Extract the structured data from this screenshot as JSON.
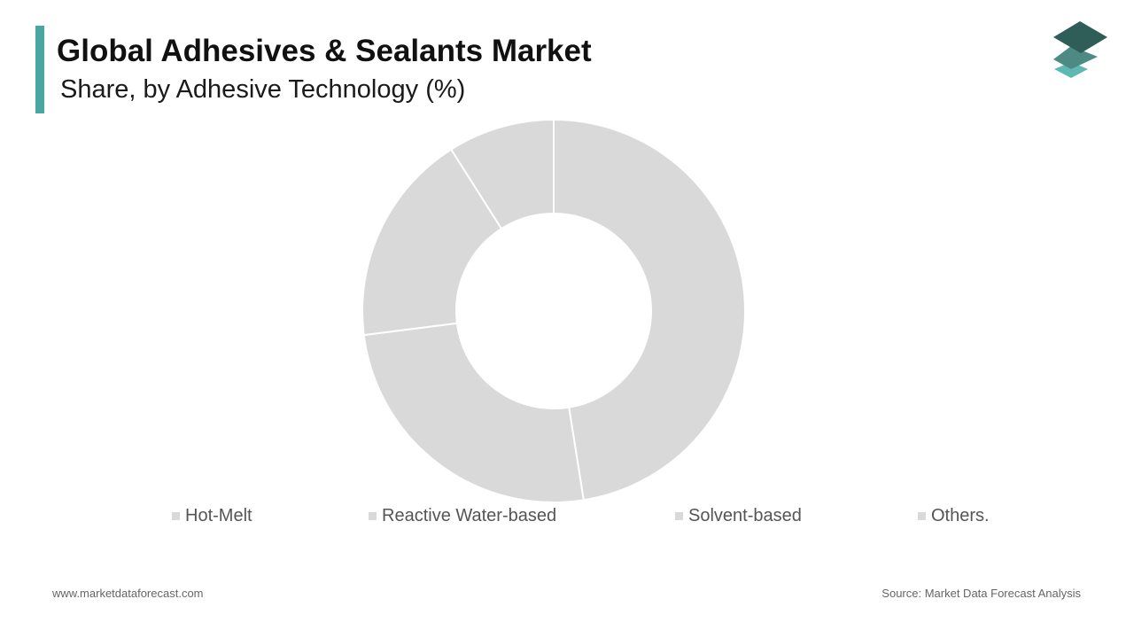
{
  "header": {
    "title": "Global Adhesives & Sealants Market",
    "subtitle": "Share, by Adhesive Technology (%)"
  },
  "colors": {
    "accent": "#4aa6a3",
    "slice": "#d9d9d9",
    "slice_border": "#ffffff",
    "logo_dark": "#2f5d58",
    "logo_mid": "#4d8a84",
    "logo_light": "#5fb8b2"
  },
  "logo": {
    "icon": "stacked-layers-icon"
  },
  "chart_data": {
    "type": "pie",
    "variant": "donut",
    "categories": [
      "Hot-Melt",
      "Reactive Water-based",
      "Solvent-based",
      "Others."
    ],
    "values": [
      47.5,
      25.5,
      18,
      9
    ],
    "title": "Global Adhesives & Sealants Market",
    "subtitle": "Share, by Adhesive Technology (%)",
    "legend_position": "bottom",
    "start_angle_deg": 0,
    "direction": "clockwise"
  },
  "footer": {
    "website": "www.marketdataforecast.com",
    "source": "Source: Market Data Forecast Analysis"
  }
}
